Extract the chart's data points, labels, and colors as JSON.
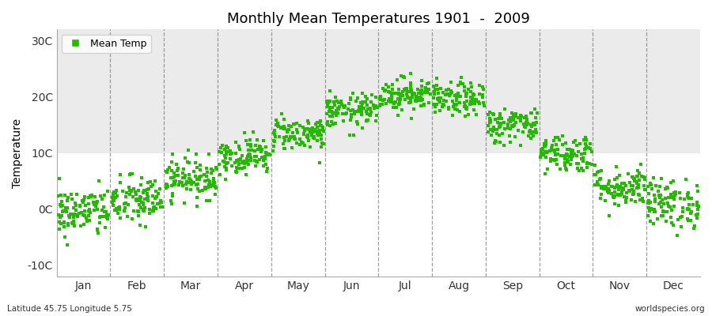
{
  "title": "Monthly Mean Temperatures 1901  -  2009",
  "ylabel": "Temperature",
  "ytick_labels": [
    "-10C",
    "0C",
    "10C",
    "20C",
    "30C"
  ],
  "ytick_values": [
    -10,
    0,
    10,
    20,
    30
  ],
  "ylim": [
    -12,
    32
  ],
  "months": [
    "Jan",
    "Feb",
    "Mar",
    "Apr",
    "May",
    "Jun",
    "Jul",
    "Aug",
    "Sep",
    "Oct",
    "Nov",
    "Dec"
  ],
  "dot_color": "#22BB00",
  "bg_color": "#FFFFFF",
  "plot_bg_color": "#FFFFFF",
  "band_color": "#EBEBEB",
  "grid_color": "#777777",
  "footer_left": "Latitude 45.75 Longitude 5.75",
  "footer_right": "worldspecies.org",
  "years": 109,
  "mean_temps": [
    -0.5,
    1.5,
    5.5,
    9.5,
    13.5,
    17.5,
    20.5,
    19.5,
    15.0,
    10.0,
    4.0,
    1.0
  ],
  "std_temps": [
    2.2,
    2.2,
    1.8,
    1.6,
    1.5,
    1.5,
    1.5,
    1.5,
    1.6,
    1.7,
    1.8,
    2.2
  ],
  "legend_label": "Mean Temp"
}
